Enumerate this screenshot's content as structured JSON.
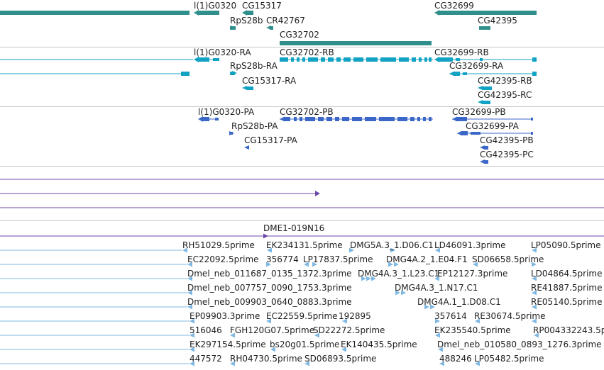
{
  "colors": {
    "gene": "#2f8f8c",
    "mrna": "#12a3c4",
    "protein": "#3a67c8",
    "contig": "#6b4aa8",
    "est": "#7fb8e2",
    "divider": "#c8c8c8"
  },
  "tracks": {
    "genes": [
      "l(1)G0320",
      "CG15317",
      "CG32699",
      "RpS28b",
      "CR42767",
      "CG42395",
      "CG32702"
    ],
    "transcripts": [
      "l(1)G0320-RA",
      "CG32702-RB",
      "CG32699-RB",
      "RpS28b-RA",
      "CG32699-RA",
      "CG15317-RA",
      "CG42395-RB",
      "CG42395-RC"
    ],
    "proteins": [
      "l(1)G0320-PA",
      "CG32702-PB",
      "CG32699-PB",
      "RpS28b-PA",
      "CG32699-PA",
      "CG15317-PA",
      "CG42395-PB",
      "CG42395-PC"
    ],
    "clone": "DME1-019N16",
    "ests": [
      "RH51029.5prime",
      "EK234131.5prime",
      "DMG5A.3_1.D06.C1",
      "LD46091.3prime",
      "LP05090.5prime",
      "EC22092.5prime",
      "356774",
      "LP17837.5prime",
      "DMG4A.2_1.E04.F1",
      "SD06658.5prime",
      "Dmel_neb_011687_0135_1372.3prime",
      "DMG4A.3_1.L23.C1",
      "EP12127.3prime",
      "LD04864.5prime",
      "Dmel_neb_007757_0090_1753.3prime",
      "DMG4A.3_1.N17.C1",
      "RE41887.5prime",
      "Dmel_neb_009903_0640_0883.3prime",
      "DMG4A.1_1.D08.C1",
      "RE05140.5prime",
      "EP09903.3prime",
      "EC22559.5prime",
      "192895",
      "357614",
      "RE30674.5prime",
      "516046",
      "FGH120G07.5prime",
      "SD22272.5prime",
      "EK235540.5prime",
      "RP004332243.5prime",
      "EK297154.5prime",
      "bs20g01.5prime",
      "EK140435.5prime",
      "Dmel_neb_010580_0893_1276.3prime",
      "447572",
      "RH04730.5prime",
      "SD06893.5prime",
      "488246",
      "LP05482.5prime"
    ]
  }
}
